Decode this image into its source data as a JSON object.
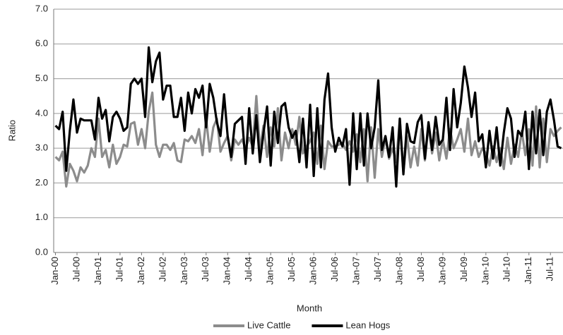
{
  "chart_data": {
    "type": "line",
    "x_label": "Month",
    "y_label": "Ratio",
    "categories": [
      "Jan-00",
      null,
      null,
      null,
      null,
      null,
      "Jul-00",
      null,
      null,
      null,
      null,
      null,
      "Jan-01",
      null,
      null,
      null,
      null,
      null,
      "Jul-01",
      null,
      null,
      null,
      null,
      null,
      "Jan-02",
      null,
      null,
      null,
      null,
      null,
      "Jul-02",
      null,
      null,
      null,
      null,
      null,
      "Jan-03",
      null,
      null,
      null,
      null,
      null,
      "Jul-03",
      null,
      null,
      null,
      null,
      null,
      "Jan-04",
      null,
      null,
      null,
      null,
      null,
      "Jul-04",
      null,
      null,
      null,
      null,
      null,
      "Jan-05",
      null,
      null,
      null,
      null,
      null,
      "Jul-05",
      null,
      null,
      null,
      null,
      null,
      "Jan-06",
      null,
      null,
      null,
      null,
      null,
      "Jul-06",
      null,
      null,
      null,
      null,
      null,
      "Jan-07",
      null,
      null,
      null,
      null,
      null,
      "Jul-07",
      null,
      null,
      null,
      null,
      null,
      "Jan-08",
      null,
      null,
      null,
      null,
      null,
      "Jul-08",
      null,
      null,
      null,
      null,
      null,
      "Jan-09",
      null,
      null,
      null,
      null,
      null,
      "Jul-09",
      null,
      null,
      null,
      null,
      null,
      "Jan-10",
      null,
      null,
      null,
      null,
      null,
      "Jul-10",
      null,
      null,
      null,
      null,
      null,
      "Jan-11",
      null,
      null,
      null,
      null,
      null,
      "Jul-11",
      null,
      null,
      null
    ],
    "series": [
      {
        "name": "Live Cattle",
        "color": "#8c8c8c",
        "values": [
          2.75,
          2.65,
          2.9,
          1.9,
          2.55,
          2.35,
          2.05,
          2.45,
          2.3,
          2.5,
          3.0,
          2.75,
          3.85,
          2.75,
          2.95,
          2.45,
          3.1,
          2.55,
          2.75,
          3.1,
          3.05,
          3.7,
          3.75,
          3.1,
          3.55,
          3.0,
          4.05,
          4.6,
          3.1,
          2.75,
          3.1,
          3.1,
          2.95,
          3.15,
          2.65,
          2.6,
          3.25,
          3.2,
          3.35,
          3.15,
          3.55,
          2.8,
          3.85,
          2.9,
          3.6,
          3.85,
          2.9,
          3.15,
          3.35,
          2.65,
          3.25,
          3.1,
          3.25,
          3.0,
          3.3,
          3.05,
          4.5,
          2.95,
          3.65,
          2.75,
          3.6,
          3.05,
          4.15,
          2.65,
          3.45,
          3.0,
          3.55,
          3.1,
          3.9,
          2.85,
          3.05,
          3.2,
          3.45,
          2.55,
          3.65,
          2.4,
          3.2,
          3.05,
          3.05,
          3.1,
          3.15,
          2.95,
          3.2,
          2.9,
          3.4,
          2.6,
          3.55,
          2.05,
          3.6,
          2.15,
          3.55,
          2.75,
          3.3,
          2.7,
          3.0,
          2.6,
          3.85,
          2.3,
          3.35,
          2.45,
          3.05,
          2.5,
          3.55,
          2.65,
          3.65,
          2.85,
          3.45,
          2.65,
          3.25,
          2.7,
          3.55,
          3.0,
          3.25,
          3.55,
          2.9,
          3.85,
          2.8,
          3.2,
          2.75,
          3.0,
          2.85,
          2.5,
          3.05,
          2.6,
          3.0,
          2.4,
          3.3,
          2.55,
          3.1,
          2.75,
          3.5,
          2.8,
          3.55,
          2.5,
          4.2,
          2.45,
          3.85,
          2.6,
          3.55,
          3.35,
          3.5,
          3.6
        ]
      },
      {
        "name": "Lean Hogs",
        "color": "#000000",
        "values": [
          3.65,
          3.55,
          4.05,
          2.35,
          3.5,
          4.4,
          3.45,
          3.85,
          3.8,
          3.8,
          3.8,
          3.25,
          4.45,
          3.85,
          4.1,
          3.2,
          3.9,
          4.05,
          3.85,
          3.5,
          3.6,
          4.85,
          5.0,
          4.85,
          5.0,
          3.9,
          5.9,
          4.9,
          5.5,
          5.75,
          4.4,
          4.8,
          4.8,
          3.9,
          3.9,
          4.45,
          3.5,
          4.6,
          4.0,
          4.7,
          4.45,
          4.8,
          3.6,
          4.85,
          4.45,
          3.75,
          3.35,
          4.55,
          3.35,
          2.75,
          3.7,
          3.8,
          3.9,
          2.55,
          4.15,
          2.85,
          3.95,
          2.6,
          3.45,
          4.2,
          2.5,
          4.05,
          3.15,
          4.2,
          4.3,
          3.6,
          3.3,
          3.5,
          2.6,
          3.85,
          2.45,
          4.25,
          2.2,
          4.15,
          2.45,
          4.4,
          5.15,
          3.6,
          2.9,
          3.3,
          3.05,
          3.55,
          1.95,
          4.0,
          2.4,
          4.0,
          2.5,
          4.0,
          3.0,
          3.6,
          4.95,
          2.95,
          3.35,
          2.75,
          3.6,
          1.9,
          3.85,
          2.25,
          3.7,
          3.2,
          3.15,
          3.75,
          3.95,
          2.7,
          3.75,
          2.95,
          3.9,
          3.1,
          3.25,
          4.45,
          2.95,
          4.7,
          3.6,
          4.3,
          5.35,
          4.75,
          3.9,
          4.6,
          3.2,
          3.4,
          2.45,
          3.5,
          2.7,
          3.6,
          2.5,
          3.45,
          4.15,
          3.85,
          2.75,
          3.5,
          3.35,
          4.05,
          2.4,
          4.05,
          2.85,
          4.1,
          2.8,
          4.05,
          4.4,
          3.8,
          3.05,
          3.0
        ]
      }
    ],
    "ylim": [
      0,
      7
    ],
    "yticks": [
      {
        "value": 0,
        "label": "0.0"
      },
      {
        "value": 1,
        "label": "1.0"
      },
      {
        "value": 2,
        "label": "2.0"
      },
      {
        "value": 3,
        "label": "3.0"
      },
      {
        "value": 4,
        "label": "4.0"
      },
      {
        "value": 5,
        "label": "5.0"
      },
      {
        "value": 6,
        "label": "6.0"
      },
      {
        "value": 7,
        "label": "7.0"
      }
    ],
    "grid": true,
    "legend": "bottom"
  }
}
